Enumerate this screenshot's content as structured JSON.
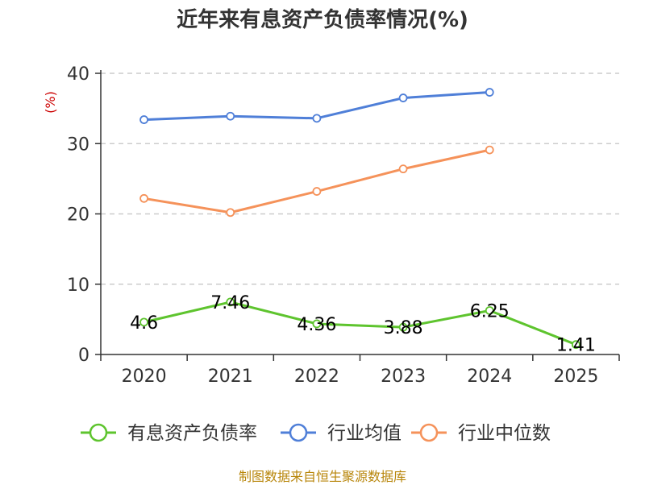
{
  "title": "近年来有息资产负债率情况(%)",
  "source": "制图数据来自恒生聚源数据库",
  "chart_data": {
    "type": "line",
    "title": "近年来有息资产负债率情况(%)",
    "unit": "(%)",
    "x": [
      "2020",
      "2021",
      "2022",
      "2023",
      "2024",
      "2025"
    ],
    "ylim": [
      0,
      40
    ],
    "yticks": [
      0,
      10,
      20,
      30,
      40
    ],
    "grid": true,
    "legend_position": "bottom",
    "series": [
      {
        "name": "有息资产负债率",
        "color": "#5ec42e",
        "values": [
          4.6,
          7.46,
          4.36,
          3.88,
          6.25,
          1.41
        ],
        "labels": [
          "4.6",
          "7.46",
          "4.36",
          "3.88",
          "6.25",
          "1.41"
        ],
        "show_labels": true
      },
      {
        "name": "行业均值",
        "color": "#4f7fd8",
        "values": [
          33.4,
          33.9,
          33.6,
          36.5,
          37.3,
          null
        ],
        "show_labels": false
      },
      {
        "name": "行业中位数",
        "color": "#f5925a",
        "values": [
          22.2,
          20.2,
          23.2,
          26.4,
          29.1,
          null
        ],
        "show_labels": false
      }
    ]
  }
}
